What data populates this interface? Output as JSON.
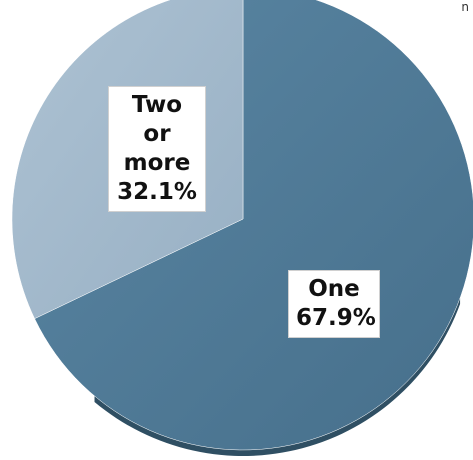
{
  "corner_text": "n",
  "colors": {
    "one": "#4f7a98",
    "two_or_more": "#a3b9cc",
    "shadow": "#2f4f63"
  },
  "chart_data": {
    "type": "pie",
    "categories": [
      "One",
      "Two or more"
    ],
    "values": [
      67.9,
      32.1
    ],
    "labels": [
      {
        "name": "One",
        "value_text": "67.9%"
      },
      {
        "name_line1": "Two or",
        "name_line2": "more",
        "value_text": "32.1%"
      }
    ],
    "title": "",
    "legend": "none"
  }
}
